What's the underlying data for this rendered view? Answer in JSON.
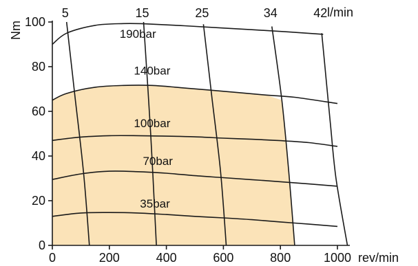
{
  "chart_data": {
    "type": "line",
    "title": "",
    "xlabel": "rev/min",
    "ylabel": "Nm",
    "top_axis_label": "l/min",
    "xlim": [
      0,
      1000
    ],
    "ylim": [
      0,
      100
    ],
    "x_ticks": [
      0,
      200,
      400,
      600,
      800,
      1000
    ],
    "y_ticks": [
      0,
      20,
      40,
      60,
      80,
      100
    ],
    "flow_ticks": [
      "5",
      "15",
      "25",
      "34",
      "42"
    ],
    "grid": false,
    "shaded_region_color": "#fbe3b8",
    "pressure_series": [
      {
        "name": "190bar",
        "x": [
          0,
          50,
          150,
          250,
          320,
          450,
          600,
          800,
          950
        ],
        "y": [
          90,
          95,
          98.5,
          99.3,
          99.2,
          98.4,
          97.3,
          95.8,
          94.5
        ]
      },
      {
        "name": "140bar",
        "x": [
          0,
          50,
          150,
          250,
          350,
          450,
          600,
          750,
          850,
          1000
        ],
        "y": [
          65,
          68,
          70.8,
          71.6,
          71.6,
          70.6,
          69,
          67.3,
          66.3,
          63.5
        ]
      },
      {
        "name": "100bar",
        "x": [
          0,
          100,
          200,
          300,
          400,
          500,
          600,
          700,
          800,
          900,
          1000
        ],
        "y": [
          47,
          48.5,
          49.1,
          49.1,
          48.9,
          48.6,
          48,
          47.5,
          46.9,
          46,
          44.3
        ]
      },
      {
        "name": "70bar",
        "x": [
          0,
          100,
          200,
          300,
          400,
          500,
          600,
          700,
          800,
          900,
          1000
        ],
        "y": [
          29.5,
          32,
          33.2,
          33,
          32.3,
          31.2,
          30.3,
          29.4,
          28.5,
          27.5,
          26.5
        ]
      },
      {
        "name": "35bar",
        "x": [
          0,
          100,
          200,
          300,
          400,
          500,
          600,
          700,
          800,
          900,
          1000
        ],
        "y": [
          13,
          14.5,
          14.7,
          14.5,
          13.8,
          13,
          12.3,
          11.5,
          10.5,
          9.5,
          8.5
        ]
      }
    ],
    "flow_series": [
      {
        "name": "5",
        "x": [
          50,
          80,
          110,
          130
        ],
        "y": [
          100,
          66,
          32,
          0
        ]
      },
      {
        "name": "15",
        "x": [
          320,
          345,
          365
        ],
        "y": [
          100,
          50,
          0
        ]
      },
      {
        "name": "25",
        "x": [
          530,
          560,
          590,
          610
        ],
        "y": [
          99,
          66,
          33,
          0
        ]
      },
      {
        "name": "34",
        "x": [
          770,
          805,
          830,
          850
        ],
        "y": [
          98,
          65,
          32,
          0
        ]
      },
      {
        "name": "42",
        "x": [
          945,
          960,
          975,
          995,
          1035
        ],
        "y": [
          95,
          75,
          55,
          30,
          0
        ]
      }
    ],
    "shaded_region": {
      "x": [
        0,
        50,
        150,
        250,
        350,
        450,
        600,
        750,
        805,
        830,
        850,
        0
      ],
      "y": [
        65,
        68,
        70.8,
        71.6,
        71.6,
        70.6,
        69,
        67.3,
        65,
        32,
        0,
        0
      ]
    }
  }
}
